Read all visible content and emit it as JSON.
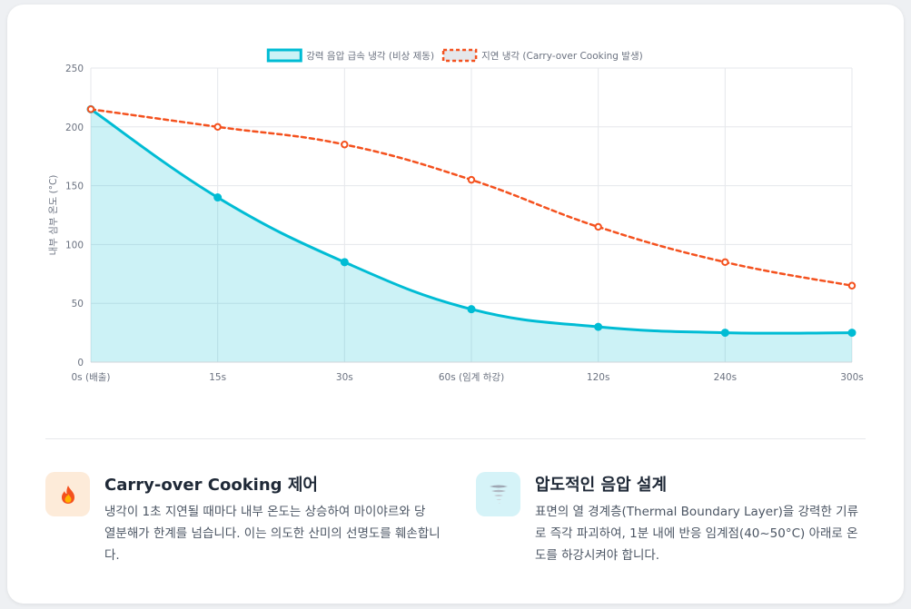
{
  "chart_data": {
    "type": "line",
    "x": [
      "0s (배출)",
      "15s",
      "30s",
      "60s (임계 하강)",
      "120s",
      "240s",
      "300s"
    ],
    "series": [
      {
        "name": "강력 음압 급속 냉각 (비상 제동)",
        "values": [
          215,
          140,
          85,
          45,
          30,
          25,
          25
        ],
        "color": "#00bcd4",
        "fill": true,
        "style": "solid"
      },
      {
        "name": "지연 냉각 (Carry-over Cooking 발생)",
        "values": [
          215,
          200,
          185,
          155,
          115,
          85,
          65
        ],
        "color": "#f4511e",
        "fill": false,
        "style": "dashed"
      }
    ],
    "ylabel": "내부 심부 온도 (°C)",
    "xlabel": "",
    "ylim": [
      0,
      250
    ],
    "yticks": [
      0,
      50,
      100,
      150,
      200,
      250
    ],
    "grid": true,
    "legend_position": "top-center"
  },
  "features": [
    {
      "icon": "fire-icon",
      "title": "Carry-over Cooking 제어",
      "description": "냉각이 1초 지연될 때마다 내부 온도는 상승하여 마이야르와 당 열분해가 한계를 넘습니다. 이는 의도한 산미의 선명도를 훼손합니다."
    },
    {
      "icon": "tornado-icon",
      "title": "압도적인 음압 설계",
      "description": "표면의 열 경계층(Thermal Boundary Layer)을 강력한 기류로 즉각 파괴하여, 1분 내에 반응 임계점(40~50°C) 아래로 온도를 하강시켜야 합니다."
    }
  ],
  "colors": {
    "accent_cyan": "#00bcd4",
    "accent_orange": "#f4511e",
    "fire_badge_bg": "#fdebd9",
    "cyan_badge_bg": "#d5f3f8"
  }
}
